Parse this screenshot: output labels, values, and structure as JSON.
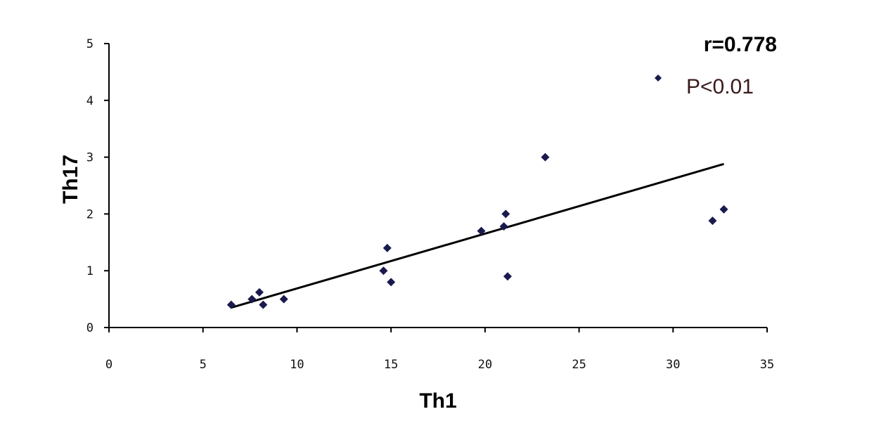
{
  "chart_data": {
    "type": "scatter",
    "xlabel": "Th1",
    "ylabel": "Th17",
    "xlim": [
      0,
      35
    ],
    "ylim": [
      0,
      5
    ],
    "xticks": [
      "0",
      "5",
      "10",
      "15",
      "20",
      "25",
      "30",
      "35"
    ],
    "yticks": [
      "0",
      "1",
      "2",
      "3",
      "4",
      "5"
    ],
    "grid": false,
    "points": [
      {
        "x": 6.5,
        "y": 0.4
      },
      {
        "x": 7.6,
        "y": 0.5
      },
      {
        "x": 8.0,
        "y": 0.62
      },
      {
        "x": 8.2,
        "y": 0.4
      },
      {
        "x": 9.3,
        "y": 0.5
      },
      {
        "x": 14.6,
        "y": 1.0
      },
      {
        "x": 14.8,
        "y": 1.4
      },
      {
        "x": 15.0,
        "y": 0.8
      },
      {
        "x": 19.8,
        "y": 1.7
      },
      {
        "x": 21.0,
        "y": 1.78
      },
      {
        "x": 21.1,
        "y": 2.0
      },
      {
        "x": 21.2,
        "y": 0.9
      },
      {
        "x": 23.2,
        "y": 3.0
      },
      {
        "x": 32.1,
        "y": 1.88
      },
      {
        "x": 32.7,
        "y": 2.08
      }
    ],
    "trendline": {
      "x": [
        6.5,
        32.7
      ],
      "y": [
        0.35,
        2.88
      ]
    },
    "marker_color": "#1a1a4e",
    "line_color": "#000000"
  },
  "stats": {
    "r_label": "r=0.778",
    "p_label": "P<0.01"
  },
  "legend": {
    "marker": "diamond",
    "placement": "top-right"
  }
}
